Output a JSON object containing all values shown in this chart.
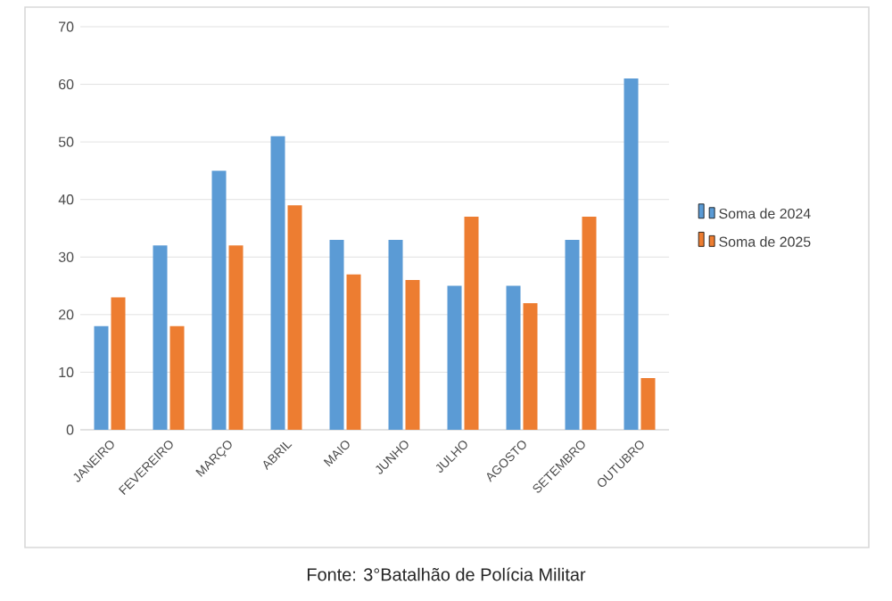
{
  "chart_data": {
    "type": "bar",
    "categories": [
      "JANEIRO",
      "FEVEREIRO",
      "MARÇO",
      "ABRIL",
      "MAIO",
      "JUNHO",
      "JULHO",
      "AGOSTO",
      "SETEMBRO",
      "OUTUBRO"
    ],
    "series": [
      {
        "name": "Soma de 2024",
        "color": "#5b9bd5",
        "values": [
          18,
          32,
          45,
          51,
          33,
          33,
          25,
          25,
          33,
          61
        ]
      },
      {
        "name": "Soma de 2025",
        "color": "#ed7d31",
        "values": [
          23,
          18,
          32,
          39,
          27,
          26,
          37,
          22,
          37,
          9
        ]
      }
    ],
    "ylim": [
      0,
      70
    ],
    "yticks": [
      0,
      10,
      20,
      30,
      40,
      50,
      60,
      70
    ],
    "grid": "y",
    "legend": "right",
    "annotations": [
      "Fonte: 3°Batalhão de Polícia Militar"
    ]
  }
}
